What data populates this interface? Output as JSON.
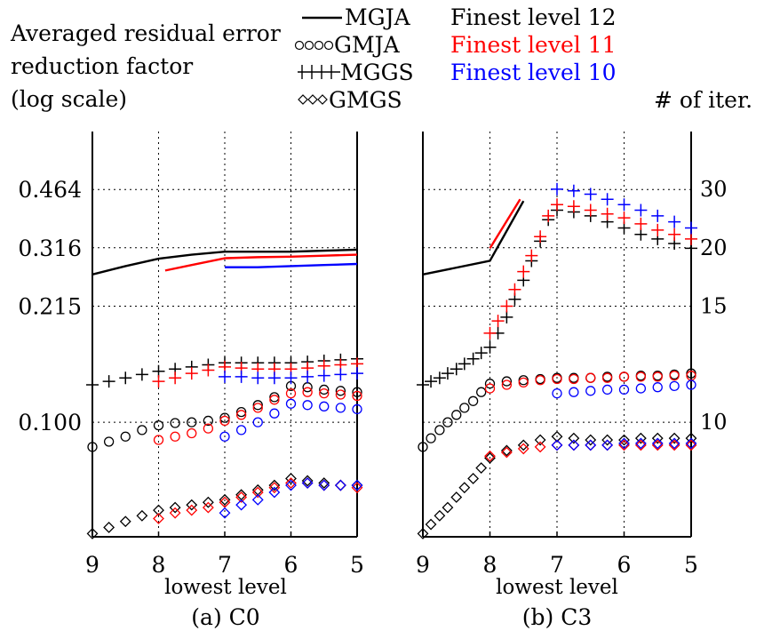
{
  "header": {
    "ylabel_lines": [
      "Averaged residual error",
      "reduction factor",
      "(log scale)"
    ],
    "right_axis_label": "# of iter.",
    "legend": [
      {
        "name": "MGJA",
        "marker": "line"
      },
      {
        "name": "GMJA",
        "marker": "circle"
      },
      {
        "name": "MGGS",
        "marker": "plus"
      },
      {
        "name": "GMGS",
        "marker": "diamond"
      }
    ],
    "color_legend": [
      {
        "label": "Finest level 12",
        "color": "#000000"
      },
      {
        "label": "Finest level 11",
        "color": "#ff0000"
      },
      {
        "label": "Finest level 10",
        "color": "#0000ff"
      }
    ]
  },
  "chart_data": [
    {
      "type": "line",
      "caption": "(a) C0",
      "xlabel": "lowest level",
      "x_ticks": [
        9,
        8,
        7,
        6,
        5
      ],
      "x_reversed": true,
      "xlim": [
        9,
        5
      ],
      "y_scale": "log",
      "ylim": [
        0.047,
        0.68
      ],
      "y_ticks": [
        0.1,
        0.215,
        0.316,
        0.464
      ],
      "y_tick_labels": [
        "0.100",
        "0.215",
        "0.316",
        "0.464"
      ],
      "grid": true,
      "series": [
        {
          "name": "MGJA",
          "finest": 12,
          "color": "#000000",
          "marker": "line",
          "x": [
            9,
            8.5,
            8,
            7.5,
            7,
            6.5,
            6,
            5.5,
            5
          ],
          "y": [
            0.265,
            0.28,
            0.294,
            0.302,
            0.308,
            0.308,
            0.308,
            0.31,
            0.312
          ]
        },
        {
          "name": "MGJA",
          "finest": 11,
          "color": "#ff0000",
          "marker": "line",
          "x": [
            7.9,
            7.5,
            7,
            6.5,
            6,
            5.5,
            5
          ],
          "y": [
            0.272,
            0.282,
            0.295,
            0.297,
            0.298,
            0.3,
            0.302
          ]
        },
        {
          "name": "MGJA",
          "finest": 10,
          "color": "#0000ff",
          "marker": "line",
          "x": [
            7,
            6.5,
            6,
            5.5,
            5
          ],
          "y": [
            0.278,
            0.278,
            0.28,
            0.282,
            0.284
          ]
        },
        {
          "name": "GMJA",
          "finest": 12,
          "color": "#000000",
          "marker": "circle",
          "x": [
            9,
            8.75,
            8.5,
            8.25,
            8,
            7.75,
            7.5,
            7.25,
            7,
            6.75,
            6.5,
            6.25,
            6,
            5.75,
            5.5,
            5.25,
            5
          ],
          "y": [
            0.085,
            0.088,
            0.091,
            0.095,
            0.098,
            0.0995,
            0.1,
            0.101,
            0.103,
            0.107,
            0.112,
            0.118,
            0.127,
            0.126,
            0.124,
            0.123,
            0.122
          ]
        },
        {
          "name": "GMJA",
          "finest": 11,
          "color": "#ff0000",
          "marker": "circle",
          "x": [
            8,
            7.75,
            7.5,
            7.25,
            7,
            6.75,
            6.5,
            6.25,
            6,
            5.75,
            5.5,
            5.25,
            5
          ],
          "y": [
            0.089,
            0.091,
            0.093,
            0.096,
            0.101,
            0.105,
            0.11,
            0.116,
            0.121,
            0.122,
            0.121,
            0.12,
            0.119
          ]
        },
        {
          "name": "GMJA",
          "finest": 10,
          "color": "#0000ff",
          "marker": "circle",
          "x": [
            7,
            6.75,
            6.5,
            6.25,
            6,
            5.75,
            5.5,
            5.25,
            5
          ],
          "y": [
            0.091,
            0.095,
            0.1,
            0.106,
            0.113,
            0.112,
            0.111,
            0.11,
            0.109
          ]
        },
        {
          "name": "MGGS",
          "finest": 12,
          "color": "#000000",
          "marker": "plus",
          "x": [
            9,
            8.75,
            8.5,
            8.25,
            8,
            7.75,
            7.5,
            7.25,
            7,
            6.75,
            6.5,
            6.25,
            6,
            5.75,
            5.5,
            5.25,
            5
          ],
          "y": [
            0.128,
            0.131,
            0.134,
            0.137,
            0.14,
            0.142,
            0.144,
            0.146,
            0.148,
            0.148,
            0.148,
            0.148,
            0.148,
            0.149,
            0.15,
            0.151,
            0.152
          ]
        },
        {
          "name": "MGGS",
          "finest": 11,
          "color": "#ff0000",
          "marker": "plus",
          "x": [
            8,
            7.75,
            7.5,
            7.25,
            7,
            6.75,
            6.5,
            6.25,
            6,
            5.75,
            5.5,
            5.25,
            5
          ],
          "y": [
            0.131,
            0.134,
            0.138,
            0.141,
            0.144,
            0.143,
            0.142,
            0.142,
            0.142,
            0.143,
            0.145,
            0.146,
            0.147
          ]
        },
        {
          "name": "MGGS",
          "finest": 10,
          "color": "#0000ff",
          "marker": "plus",
          "x": [
            7,
            6.75,
            6.5,
            6.25,
            6,
            5.75,
            5.5,
            5.25,
            5
          ],
          "y": [
            0.135,
            0.135,
            0.134,
            0.134,
            0.134,
            0.135,
            0.136,
            0.137,
            0.138
          ]
        },
        {
          "name": "GMGS",
          "finest": 12,
          "color": "#000000",
          "marker": "diamond",
          "x": [
            9,
            8.75,
            8.5,
            8.25,
            8,
            7.75,
            7.5,
            7.25,
            7,
            6.75,
            6.5,
            6.25,
            6,
            5.75,
            5.5,
            5.25,
            5
          ],
          "y": [
            0.048,
            0.05,
            0.052,
            0.054,
            0.056,
            0.057,
            0.058,
            0.059,
            0.06,
            0.062,
            0.064,
            0.066,
            0.069,
            0.068,
            0.067,
            0.066,
            0.066
          ]
        },
        {
          "name": "GMGS",
          "finest": 11,
          "color": "#ff0000",
          "marker": "diamond",
          "x": [
            8,
            7.75,
            7.5,
            7.25,
            7,
            6.75,
            6.5,
            6.25,
            6,
            5.75,
            5.5,
            5.25,
            5
          ],
          "y": [
            0.053,
            0.055,
            0.056,
            0.057,
            0.059,
            0.061,
            0.063,
            0.065,
            0.067,
            0.067,
            0.066,
            0.066,
            0.065
          ]
        },
        {
          "name": "GMGS",
          "finest": 10,
          "color": "#0000ff",
          "marker": "diamond",
          "x": [
            7,
            6.75,
            6.5,
            6.25,
            6,
            5.75,
            5.5,
            5.25,
            5
          ],
          "y": [
            0.055,
            0.058,
            0.06,
            0.063,
            0.066,
            0.067,
            0.066,
            0.066,
            0.066
          ]
        }
      ]
    },
    {
      "type": "line",
      "caption": "(b) C3",
      "xlabel": "lowest level",
      "x_ticks": [
        9,
        8,
        7,
        6,
        5
      ],
      "x_reversed": true,
      "xlim": [
        9,
        5
      ],
      "y_scale": "log",
      "ylim": [
        0.047,
        0.68
      ],
      "y_tick_labels_right": [
        "10",
        "15",
        "20",
        "30"
      ],
      "grid": true,
      "series": [
        {
          "name": "MGJA",
          "finest": 12,
          "color": "#000000",
          "marker": "line",
          "x": [
            9,
            8,
            7.5
          ],
          "y": [
            0.265,
            0.29,
            0.43
          ]
        },
        {
          "name": "MGJA",
          "finest": 11,
          "color": "#ff0000",
          "marker": "line",
          "x": [
            8,
            7.55
          ],
          "y": [
            0.315,
            0.435
          ]
        },
        {
          "name": "GMJA",
          "finest": 12,
          "color": "#000000",
          "marker": "circle",
          "x": [
            9,
            8.88,
            8.75,
            8.63,
            8.5,
            8.38,
            8.25,
            8.13,
            8,
            7.75,
            7.5,
            7.25,
            7,
            6.75,
            6.5,
            6.25,
            6,
            5.75,
            5.5,
            5.25,
            5
          ],
          "y": [
            0.085,
            0.09,
            0.095,
            0.1,
            0.105,
            0.11,
            0.115,
            0.122,
            0.129,
            0.131,
            0.132,
            0.133,
            0.134,
            0.134,
            0.134,
            0.135,
            0.135,
            0.136,
            0.136,
            0.137,
            0.138
          ]
        },
        {
          "name": "GMJA",
          "finest": 11,
          "color": "#ff0000",
          "marker": "circle",
          "x": [
            8,
            7.75,
            7.5,
            7.25,
            7,
            6.75,
            6.5,
            6.25,
            6,
            5.75,
            5.5,
            5.25,
            5
          ],
          "y": [
            0.125,
            0.128,
            0.13,
            0.132,
            0.133,
            0.133,
            0.134,
            0.134,
            0.135,
            0.135,
            0.135,
            0.136,
            0.136
          ]
        },
        {
          "name": "GMJA",
          "finest": 10,
          "color": "#0000ff",
          "marker": "circle",
          "x": [
            7,
            6.75,
            6.5,
            6.25,
            6,
            5.75,
            5.5,
            5.25,
            5
          ],
          "y": [
            0.121,
            0.122,
            0.123,
            0.124,
            0.124,
            0.125,
            0.126,
            0.127,
            0.128
          ]
        },
        {
          "name": "MGGS",
          "finest": 12,
          "color": "#000000",
          "marker": "plus",
          "x": [
            9,
            8.88,
            8.75,
            8.63,
            8.5,
            8.38,
            8.25,
            8.13,
            8,
            7.88,
            7.75,
            7.63,
            7.5,
            7.38,
            7.25,
            7.13,
            7,
            6.75,
            6.5,
            6.25,
            6,
            5.75,
            5.5,
            5.25,
            5
          ],
          "y": [
            0.128,
            0.131,
            0.134,
            0.138,
            0.142,
            0.147,
            0.152,
            0.158,
            0.164,
            0.18,
            0.2,
            0.225,
            0.255,
            0.29,
            0.33,
            0.38,
            0.405,
            0.4,
            0.39,
            0.375,
            0.36,
            0.345,
            0.335,
            0.325,
            0.315
          ]
        },
        {
          "name": "MGGS",
          "finest": 11,
          "color": "#ff0000",
          "marker": "plus",
          "x": [
            8,
            7.88,
            7.75,
            7.63,
            7.5,
            7.38,
            7.25,
            7.13,
            7,
            6.75,
            6.5,
            6.25,
            6,
            5.75,
            5.5,
            5.25,
            5
          ],
          "y": [
            0.18,
            0.195,
            0.215,
            0.24,
            0.27,
            0.3,
            0.34,
            0.39,
            0.42,
            0.415,
            0.405,
            0.395,
            0.385,
            0.37,
            0.355,
            0.345,
            0.335
          ]
        },
        {
          "name": "MGGS",
          "finest": 10,
          "color": "#0000ff",
          "marker": "plus",
          "x": [
            7,
            6.75,
            6.5,
            6.25,
            6,
            5.75,
            5.5,
            5.25,
            5
          ],
          "y": [
            0.465,
            0.46,
            0.45,
            0.435,
            0.42,
            0.405,
            0.39,
            0.375,
            0.36
          ]
        },
        {
          "name": "GMGS",
          "finest": 12,
          "color": "#000000",
          "marker": "diamond",
          "x": [
            9,
            8.88,
            8.75,
            8.63,
            8.5,
            8.38,
            8.25,
            8.13,
            8,
            7.75,
            7.5,
            7.25,
            7,
            6.75,
            6.5,
            6.25,
            6,
            5.75,
            5.5,
            5.25,
            5
          ],
          "y": [
            0.048,
            0.051,
            0.054,
            0.057,
            0.061,
            0.065,
            0.069,
            0.074,
            0.079,
            0.083,
            0.086,
            0.089,
            0.091,
            0.09,
            0.089,
            0.089,
            0.089,
            0.09,
            0.09,
            0.09,
            0.09
          ]
        },
        {
          "name": "GMGS",
          "finest": 11,
          "color": "#ff0000",
          "marker": "diamond",
          "x": [
            8,
            7.75,
            7.5,
            7.25,
            7,
            6.75,
            6.5,
            6.25,
            6,
            5.75,
            5.5,
            5.25,
            5
          ],
          "y": [
            0.08,
            0.082,
            0.084,
            0.085,
            0.086,
            0.086,
            0.086,
            0.086,
            0.086,
            0.086,
            0.086,
            0.086,
            0.086
          ]
        },
        {
          "name": "GMGS",
          "finest": 10,
          "color": "#0000ff",
          "marker": "diamond",
          "x": [
            7,
            6.75,
            6.5,
            6.25,
            6,
            5.75,
            5.5,
            5.25,
            5
          ],
          "y": [
            0.086,
            0.086,
            0.086,
            0.086,
            0.087,
            0.087,
            0.087,
            0.087,
            0.087
          ]
        }
      ]
    }
  ]
}
